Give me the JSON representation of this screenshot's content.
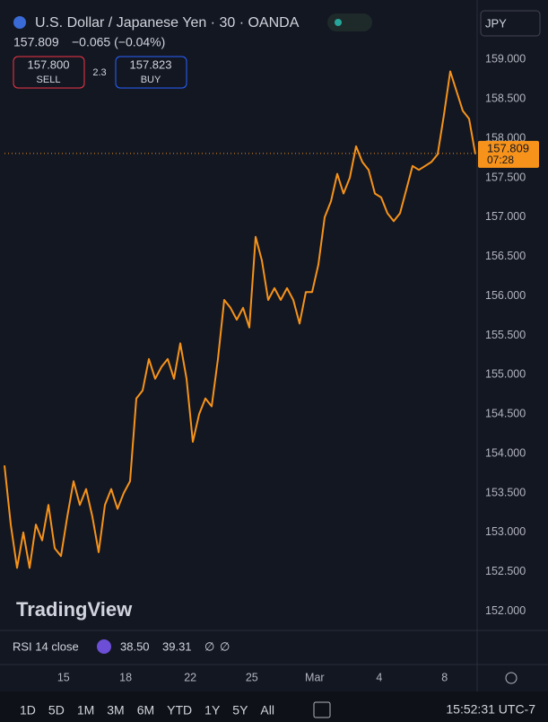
{
  "header": {
    "symbol": "U.S. Dollar / Japanese Yen · 30 · OANDA",
    "price": "157.809",
    "change": "−0.065 (−0.04%)",
    "sell_price": "157.800",
    "sell": "SELL",
    "spread": "2.3",
    "buy_price": "157.823",
    "buy": "BUY",
    "currency": "JPY"
  },
  "chart_data": {
    "type": "line",
    "color": "#f7931a",
    "values": [
      153.85,
      153.1,
      152.55,
      153.0,
      152.55,
      153.1,
      152.9,
      153.35,
      152.8,
      152.7,
      153.2,
      153.65,
      153.35,
      153.55,
      153.2,
      152.75,
      153.35,
      153.55,
      153.3,
      153.5,
      153.65,
      154.7,
      154.8,
      155.2,
      154.95,
      155.1,
      155.2,
      154.95,
      155.4,
      154.95,
      154.15,
      154.5,
      154.7,
      154.6,
      155.2,
      155.95,
      155.85,
      155.7,
      155.85,
      155.6,
      156.75,
      156.45,
      155.95,
      156.1,
      155.95,
      156.1,
      155.95,
      155.65,
      156.05,
      156.05,
      156.4,
      157.0,
      157.2,
      157.55,
      157.3,
      157.5,
      157.9,
      157.7,
      157.6,
      157.3,
      157.25,
      157.05,
      156.95,
      157.05,
      157.35,
      157.65,
      157.6,
      157.65,
      157.7,
      157.8,
      158.3,
      158.85,
      158.6,
      158.35,
      158.25,
      157.8
    ],
    "xlim": [
      0,
      75
    ],
    "xticks": [
      {
        "value": 9.4,
        "label": "15"
      },
      {
        "value": 19.3,
        "label": "18"
      },
      {
        "value": 29.6,
        "label": "22"
      },
      {
        "value": 39.4,
        "label": "25"
      },
      {
        "value": 49.4,
        "label": "Mar"
      },
      {
        "value": 59.7,
        "label": "4"
      },
      {
        "value": 70.1,
        "label": "8"
      }
    ],
    "ylim": [
      151.757,
      159.756
    ],
    "yticks": [
      {
        "value": 152,
        "label": "152.000"
      },
      {
        "value": 152.5,
        "label": "152.500"
      },
      {
        "value": 153,
        "label": "153.000"
      },
      {
        "value": 153.5,
        "label": "153.500"
      },
      {
        "value": 154,
        "label": "154.000"
      },
      {
        "value": 154.5,
        "label": "154.500"
      },
      {
        "value": 155,
        "label": "155.000"
      },
      {
        "value": 155.5,
        "label": "155.500"
      },
      {
        "value": 156,
        "label": "156.000"
      },
      {
        "value": 156.5,
        "label": "156.500"
      },
      {
        "value": 157,
        "label": "157.000"
      },
      {
        "value": 157.5,
        "label": "157.500"
      },
      {
        "value": 158,
        "label": "158.000"
      },
      {
        "value": 158.5,
        "label": "158.500"
      },
      {
        "value": 159,
        "label": "159.000"
      }
    ],
    "price_tag": {
      "value": 157.809,
      "label": "157.809"
    },
    "countdown": "07:28"
  },
  "watermark": "TradingView",
  "rsi": {
    "label": "RSI 14 close",
    "value1": "38.50",
    "value2": "39.31",
    "extra1": "∅",
    "extra2": "∅"
  },
  "toolbar": {
    "ranges": [
      "1D",
      "5D",
      "1M",
      "3M",
      "6M",
      "YTD",
      "1Y",
      "5Y",
      "All"
    ],
    "time": "15:52:31 UTC-7"
  }
}
